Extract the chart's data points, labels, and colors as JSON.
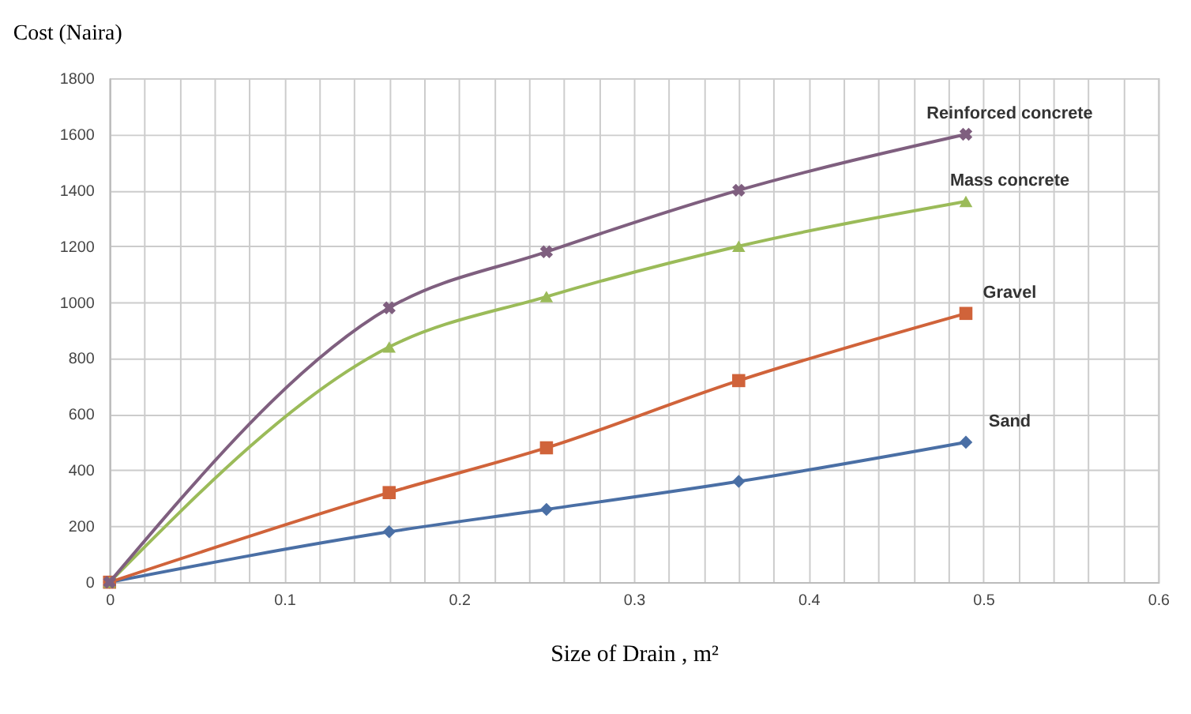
{
  "chart_data": {
    "type": "line",
    "xlabel": "Size of Drain , m²",
    "ylabel": "Cost (Naira)",
    "x": [
      0,
      0.16,
      0.25,
      0.36,
      0.49
    ],
    "series": [
      {
        "name": "Sand",
        "color": "#4a6fa5",
        "marker": "diamond",
        "values": [
          0,
          180,
          260,
          360,
          500
        ]
      },
      {
        "name": "Gravel",
        "color": "#d0633a",
        "marker": "square",
        "values": [
          0,
          320,
          480,
          720,
          960
        ]
      },
      {
        "name": "Mass concrete",
        "color": "#9bbb59",
        "marker": "triangle",
        "values": [
          0,
          840,
          1020,
          1200,
          1360
        ]
      },
      {
        "name": "Reinforced concrete",
        "color": "#7f5f7f",
        "marker": "cross",
        "values": [
          0,
          980,
          1180,
          1400,
          1600
        ]
      }
    ],
    "xlim": [
      0,
      0.6
    ],
    "ylim": [
      0,
      1800
    ],
    "xticks": [
      0,
      {
        "value": 0.02,
        "label": null
      },
      {
        "value": 0.04,
        "label": null
      },
      {
        "value": 0.06,
        "label": null
      },
      {
        "value": 0.08,
        "label": null
      },
      0.1,
      {
        "value": 0.12,
        "label": null
      },
      {
        "value": 0.14,
        "label": null
      },
      {
        "value": 0.16,
        "label": null
      },
      {
        "value": 0.18,
        "label": null
      },
      0.2,
      {
        "value": 0.22,
        "label": null
      },
      {
        "value": 0.24,
        "label": null
      },
      {
        "value": 0.26,
        "label": null
      },
      {
        "value": 0.28,
        "label": null
      },
      0.3,
      {
        "value": 0.32,
        "label": null
      },
      {
        "value": 0.34,
        "label": null
      },
      {
        "value": 0.36,
        "label": null
      },
      {
        "value": 0.38,
        "label": null
      },
      0.4,
      {
        "value": 0.42,
        "label": null
      },
      {
        "value": 0.44,
        "label": null
      },
      {
        "value": 0.46,
        "label": null
      },
      {
        "value": 0.48,
        "label": null
      },
      0.5,
      {
        "value": 0.52,
        "label": null
      },
      {
        "value": 0.54,
        "label": null
      },
      {
        "value": 0.56,
        "label": null
      },
      {
        "value": 0.58,
        "label": null
      },
      0.6
    ],
    "yticks": [
      0,
      200,
      400,
      600,
      800,
      1000,
      1200,
      1400,
      1600,
      1800
    ],
    "grid": true,
    "legend": false,
    "line_style": "solid"
  }
}
